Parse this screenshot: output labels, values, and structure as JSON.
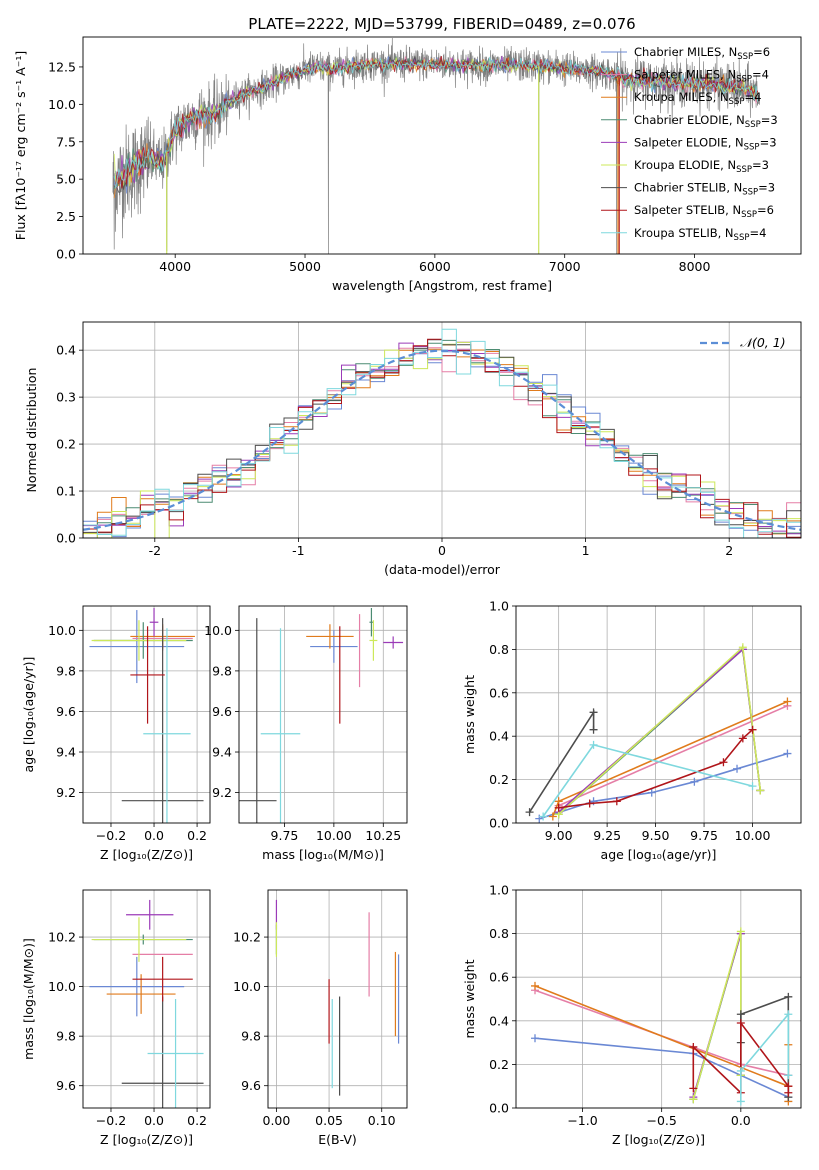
{
  "figure_title": "PLATE=2222, MJD=53799, FIBERID=0489, z=0.076",
  "colors": {
    "Chabrier MILES": "#6a88d4",
    "Salpeter MILES": "#e57ea6",
    "Kroupa MILES": "#e07b1c",
    "Chabrier ELODIE": "#4c8c72",
    "Salpeter ELODIE": "#9b3bb8",
    "Kroupa ELODIE": "#cde85a",
    "Chabrier STELIB": "#4d4d4d",
    "Salpeter STELIB": "#b0151a",
    "Kroupa STELIB": "#7fd8de",
    "data": "#808080"
  },
  "chart_data": [
    {
      "id": "spectrum",
      "type": "line",
      "xlabel": "wavelength [Angstrom, rest frame]",
      "ylabel": "Flux [fλ10⁻¹⁷ erg cm⁻² s⁻¹ A⁻¹]",
      "xlim": [
        3290,
        8820
      ],
      "ylim": [
        0,
        14.5
      ],
      "xticks": [
        4000,
        5000,
        6000,
        7000,
        8000
      ],
      "yticks": [
        0.0,
        2.5,
        5.0,
        7.5,
        10.0,
        12.5
      ],
      "grid": false,
      "legend_position": "right",
      "legend": [
        {
          "label": "Chabrier MILES, N",
          "sub": "SSP",
          "suffix": "=6",
          "color_key": "Chabrier MILES"
        },
        {
          "label": "Salpeter MILES, N",
          "sub": "SSP",
          "suffix": "=4",
          "color_key": "Salpeter MILES"
        },
        {
          "label": "Kroupa MILES, N",
          "sub": "SSP",
          "suffix": "=4",
          "color_key": "Kroupa MILES"
        },
        {
          "label": "Chabrier ELODIE, N",
          "sub": "SSP",
          "suffix": "=3",
          "color_key": "Chabrier ELODIE"
        },
        {
          "label": "Salpeter ELODIE, N",
          "sub": "SSP",
          "suffix": "=3",
          "color_key": "Salpeter ELODIE"
        },
        {
          "label": "Kroupa ELODIE, N",
          "sub": "SSP",
          "suffix": "=3",
          "color_key": "Kroupa ELODIE"
        },
        {
          "label": "Chabrier STELIB, N",
          "sub": "SSP",
          "suffix": "=3",
          "color_key": "Chabrier STELIB"
        },
        {
          "label": "Salpeter STELIB, N",
          "sub": "SSP",
          "suffix": "=6",
          "color_key": "Salpeter STELIB"
        },
        {
          "label": "Kroupa STELIB, N",
          "sub": "SSP",
          "suffix": "=4",
          "color_key": "Kroupa STELIB"
        }
      ],
      "continuum": [
        [
          3520,
          4.6
        ],
        [
          3600,
          5.3
        ],
        [
          3700,
          5.8
        ],
        [
          3800,
          6.4
        ],
        [
          3900,
          6.0
        ],
        [
          3950,
          7.2
        ],
        [
          4000,
          8.2
        ],
        [
          4100,
          8.9
        ],
        [
          4200,
          9.3
        ],
        [
          4300,
          9.3
        ],
        [
          4400,
          10.0
        ],
        [
          4500,
          10.6
        ],
        [
          4600,
          10.9
        ],
        [
          4700,
          11.2
        ],
        [
          4800,
          11.6
        ],
        [
          4900,
          12.0
        ],
        [
          5000,
          12.3
        ],
        [
          5100,
          12.5
        ],
        [
          5200,
          12.3
        ],
        [
          5300,
          12.5
        ],
        [
          5500,
          12.7
        ],
        [
          5700,
          12.7
        ],
        [
          5900,
          12.7
        ],
        [
          6100,
          12.7
        ],
        [
          6300,
          12.6
        ],
        [
          6500,
          12.6
        ],
        [
          6700,
          12.6
        ],
        [
          6900,
          12.5
        ],
        [
          7100,
          12.3
        ],
        [
          7300,
          12.2
        ],
        [
          7420,
          11.8
        ],
        [
          7600,
          11.6
        ],
        [
          7800,
          11.5
        ],
        [
          8000,
          11.4
        ],
        [
          8200,
          11.3
        ],
        [
          8400,
          11.0
        ],
        [
          8500,
          10.6
        ]
      ],
      "spikes": [
        [
          3530,
          0.3
        ],
        [
          3935,
          0.2
        ],
        [
          5180,
          0.0
        ],
        [
          6800,
          0.0
        ],
        [
          7400,
          0.0
        ]
      ]
    },
    {
      "id": "residuals",
      "type": "histogram",
      "xlabel": "(data-model)/error",
      "ylabel": "Normed distribution",
      "xlim": [
        -2.5,
        2.5
      ],
      "ylim": [
        0,
        0.46
      ],
      "xticks": [
        -2,
        -1,
        0,
        1,
        2
      ],
      "yticks": [
        0.0,
        0.1,
        0.2,
        0.3,
        0.4
      ],
      "grid": true,
      "legend_position": "top-right",
      "legend": [
        {
          "label": "𝒩(0, 1)",
          "color": "#5b8ed6"
        }
      ],
      "bin_width": 0.1,
      "reference_curve": "normal(0,1)"
    },
    {
      "id": "age_vs_Z",
      "type": "errorbar",
      "xlabel": "Z [log₁₀(Z/Z⊙)]",
      "ylabel": "age  [log₁₀(age/yr)]",
      "xlim": [
        -0.33,
        0.26
      ],
      "ylim": [
        9.05,
        10.12
      ],
      "xticks": [
        -0.2,
        0.0,
        0.2
      ],
      "xtick_labels": [
        "−0.2",
        "0.0",
        "0.2"
      ],
      "yticks": [
        9.2,
        9.4,
        9.6,
        9.8,
        10.0
      ],
      "grid": true,
      "points": [
        {
          "k": "Chabrier MILES",
          "x": -0.08,
          "xe": 0.22,
          "y": 9.92,
          "ye": 0.18
        },
        {
          "k": "Salpeter MILES",
          "x": 0.04,
          "xe": 0.14,
          "y": 9.96,
          "ye": 0.06
        },
        {
          "k": "Kroupa MILES",
          "x": 0.04,
          "xe": 0.15,
          "y": 9.97,
          "ye": 0.06
        },
        {
          "k": "Chabrier ELODIE",
          "x": -0.05,
          "xe": 0.23,
          "y": 9.95,
          "ye": 0.09
        },
        {
          "k": "Salpeter ELODIE",
          "x": 0.0,
          "xe": 0.02,
          "y": 10.04,
          "ye": 0.07
        },
        {
          "k": "Kroupa ELODIE",
          "x": -0.07,
          "xe": 0.22,
          "y": 9.95,
          "ye": 0.1
        },
        {
          "k": "Chabrier STELIB",
          "x": 0.04,
          "xe": 0.19,
          "y": 9.16,
          "ye": 0.9
        },
        {
          "k": "Salpeter STELIB",
          "x": -0.03,
          "xe": 0.08,
          "y": 9.78,
          "ye": 0.24
        },
        {
          "k": "Kroupa STELIB",
          "x": 0.06,
          "xe": 0.11,
          "y": 9.49,
          "ye": 0.52
        }
      ]
    },
    {
      "id": "age_vs_mass",
      "type": "errorbar",
      "xlabel": "mass [log₁₀(M/M⊙)]",
      "ylabel": "",
      "xlim": [
        9.52,
        10.37
      ],
      "ylim": [
        9.05,
        10.12
      ],
      "xticks": [
        9.75,
        10.0,
        10.25
      ],
      "xtick_labels": [
        "9.75",
        "10.00",
        "10.25"
      ],
      "yticks": [
        9.2,
        9.4,
        9.6,
        9.8,
        10.0
      ],
      "grid": true,
      "points": [
        {
          "k": "Chabrier MILES",
          "x": 10.0,
          "xe": 0.12,
          "y": 9.92,
          "ye": 0.08
        },
        {
          "k": "Salpeter MILES",
          "x": 10.13,
          "xe": 0.0,
          "y": 9.9,
          "ye": 0.18
        },
        {
          "k": "Kroupa MILES",
          "x": 9.98,
          "xe": 0.12,
          "y": 9.97,
          "ye": 0.06
        },
        {
          "k": "Chabrier ELODIE",
          "x": 10.19,
          "xe": 0.01,
          "y": 10.04,
          "ye": 0.07
        },
        {
          "k": "Salpeter ELODIE",
          "x": 10.3,
          "xe": 0.05,
          "y": 9.94,
          "ye": 0.03
        },
        {
          "k": "Kroupa ELODIE",
          "x": 10.2,
          "xe": 0.02,
          "y": 9.95,
          "ye": 0.1
        },
        {
          "k": "Chabrier STELIB",
          "x": 9.61,
          "xe": 0.1,
          "y": 9.16,
          "ye": 0.9
        },
        {
          "k": "Salpeter STELIB",
          "x": 10.03,
          "xe": 0.0,
          "y": 9.78,
          "ye": 0.24
        },
        {
          "k": "Kroupa STELIB",
          "x": 9.73,
          "xe": 0.1,
          "y": 9.49,
          "ye": 0.52
        }
      ]
    },
    {
      "id": "weights_vs_age",
      "type": "line",
      "xlabel": "age  [log₁₀(age/yr)]",
      "ylabel": "mass weight",
      "xlim": [
        8.78,
        10.25
      ],
      "ylim": [
        0.0,
        1.0
      ],
      "xticks": [
        9.0,
        9.25,
        9.5,
        9.75,
        10.0
      ],
      "xtick_labels": [
        "9.00",
        "9.25",
        "9.50",
        "9.75",
        "10.00"
      ],
      "yticks": [
        0.0,
        0.2,
        0.4,
        0.6,
        0.8,
        1.0
      ],
      "grid": true,
      "series": [
        {
          "k": "Chabrier MILES",
          "x": [
            8.9,
            9.18,
            9.48,
            9.7,
            9.92,
            10.18
          ],
          "y": [
            0.02,
            0.1,
            0.14,
            0.19,
            0.25,
            0.32
          ]
        },
        {
          "k": "Salpeter MILES",
          "x": [
            9.0,
            10.18
          ],
          "y": [
            0.08,
            0.54
          ]
        },
        {
          "k": "Kroupa MILES",
          "x": [
            8.97,
            9.0,
            10.18
          ],
          "y": [
            0.03,
            0.1,
            0.56
          ]
        },
        {
          "k": "Chabrier ELODIE",
          "x": [
            9.0,
            9.95,
            10.04
          ],
          "y": [
            0.04,
            0.8,
            0.15
          ]
        },
        {
          "k": "Salpeter ELODIE",
          "x": [
            9.0,
            9.95,
            10.04
          ],
          "y": [
            0.05,
            0.8,
            0.15
          ]
        },
        {
          "k": "Kroupa ELODIE",
          "x": [
            9.0,
            9.95,
            10.04
          ],
          "y": [
            0.04,
            0.81,
            0.15
          ]
        },
        {
          "k": "Chabrier STELIB",
          "x": [
            8.85,
            9.18,
            9.18
          ],
          "y": [
            0.05,
            0.51,
            0.43
          ]
        },
        {
          "k": "Salpeter STELIB",
          "x": [
            9.0,
            9.16,
            9.3,
            9.85,
            9.95,
            10.0
          ],
          "y": [
            0.07,
            0.09,
            0.1,
            0.28,
            0.39,
            0.43
          ]
        },
        {
          "k": "Kroupa STELIB",
          "x": [
            8.92,
            9.18,
            10.0
          ],
          "y": [
            0.03,
            0.36,
            0.17
          ]
        }
      ]
    },
    {
      "id": "mass_vs_Z",
      "type": "errorbar",
      "xlabel": "Z [log₁₀(Z/Z⊙)]",
      "ylabel": "mass [log₁₀(M/M⊙)]",
      "xlim": [
        -0.33,
        0.26
      ],
      "ylim": [
        9.51,
        10.39
      ],
      "xticks": [
        -0.2,
        0.0,
        0.2
      ],
      "xtick_labels": [
        "−0.2",
        "0.0",
        "0.2"
      ],
      "yticks": [
        9.6,
        9.8,
        10.0,
        10.2
      ],
      "grid": true,
      "points": [
        {
          "k": "Chabrier MILES",
          "x": -0.08,
          "xe": 0.22,
          "y": 10.0,
          "ye": 0.12
        },
        {
          "k": "Salpeter MILES",
          "x": 0.04,
          "xe": 0.14,
          "y": 10.13,
          "ye": 0.0
        },
        {
          "k": "Kroupa MILES",
          "x": -0.06,
          "xe": 0.16,
          "y": 9.97,
          "ye": 0.08
        },
        {
          "k": "Chabrier ELODIE",
          "x": -0.05,
          "xe": 0.23,
          "y": 10.19,
          "ye": 0.02
        },
        {
          "k": "Salpeter ELODIE",
          "x": -0.02,
          "xe": 0.11,
          "y": 10.29,
          "ye": 0.06
        },
        {
          "k": "Kroupa ELODIE",
          "x": -0.07,
          "xe": 0.22,
          "y": 10.19,
          "ye": 0.09
        },
        {
          "k": "Chabrier STELIB",
          "x": 0.04,
          "xe": 0.19,
          "y": 9.61,
          "ye": 0.35
        },
        {
          "k": "Salpeter STELIB",
          "x": 0.04,
          "xe": 0.14,
          "y": 10.03,
          "ye": 0.09
        },
        {
          "k": "Kroupa STELIB",
          "x": 0.1,
          "xe": 0.13,
          "y": 9.73,
          "ye": 0.22
        }
      ]
    },
    {
      "id": "mass_vs_ebv",
      "type": "errorbar",
      "xlabel": "E(B-V)",
      "ylabel": "",
      "xlim": [
        -0.008,
        0.124
      ],
      "ylim": [
        9.51,
        10.39
      ],
      "xticks": [
        0.0,
        0.05,
        0.1
      ],
      "xtick_labels": [
        "0.00",
        "0.05",
        "0.10"
      ],
      "yticks": [
        9.6,
        9.8,
        10.0,
        10.2
      ],
      "grid": true,
      "points": [
        {
          "k": "Chabrier MILES",
          "x": 0.116,
          "xe": 0.0,
          "y": 9.95,
          "ye": 0.18
        },
        {
          "k": "Salpeter MILES",
          "x": 0.088,
          "xe": 0.0,
          "y": 10.13,
          "ye": 0.17
        },
        {
          "k": "Kroupa MILES",
          "x": 0.113,
          "xe": 0.0,
          "y": 9.97,
          "ye": 0.17
        },
        {
          "k": "Chabrier ELODIE",
          "x": 0.0,
          "xe": 0.0,
          "y": 10.19,
          "ye": 0.06
        },
        {
          "k": "Salpeter ELODIE",
          "x": 0.0,
          "xe": 0.0,
          "y": 10.29,
          "ye": 0.06
        },
        {
          "k": "Kroupa ELODIE",
          "x": 0.0,
          "xe": 0.0,
          "y": 10.19,
          "ye": 0.07
        },
        {
          "k": "Chabrier STELIB",
          "x": 0.06,
          "xe": 0.0,
          "y": 9.76,
          "ye": 0.2
        },
        {
          "k": "Salpeter STELIB",
          "x": 0.05,
          "xe": 0.0,
          "y": 9.9,
          "ye": 0.13
        },
        {
          "k": "Kroupa STELIB",
          "x": 0.053,
          "xe": 0.0,
          "y": 9.77,
          "ye": 0.18
        }
      ]
    },
    {
      "id": "weights_vs_Z",
      "type": "line",
      "xlabel": "Z [log₁₀(Z/Z⊙)]",
      "ylabel": "mass weight",
      "xlim": [
        -1.42,
        0.38
      ],
      "ylim": [
        0.0,
        1.0
      ],
      "xticks": [
        -1.0,
        -0.5,
        0.0
      ],
      "xtick_labels": [
        "−1.0",
        "−0.5",
        "0.0"
      ],
      "yticks": [
        0.0,
        0.2,
        0.4,
        0.6,
        0.8,
        1.0
      ],
      "grid": true,
      "series": [
        {
          "k": "Chabrier MILES",
          "x": [
            -1.3,
            -0.3,
            0.3
          ],
          "y": [
            0.32,
            0.25,
            0.05
          ]
        },
        {
          "k": "Salpeter MILES",
          "x": [
            -1.3,
            0.0,
            0.3
          ],
          "y": [
            0.54,
            0.2,
            0.15
          ]
        },
        {
          "k": "Kroupa MILES",
          "x": [
            -1.3,
            0.3,
            0.3,
            0.3
          ],
          "y": [
            0.56,
            0.1,
            0.03,
            0.29
          ]
        },
        {
          "k": "Chabrier ELODIE",
          "x": [
            -0.3,
            0.0,
            0.0
          ],
          "y": [
            0.04,
            0.8,
            0.15
          ]
        },
        {
          "k": "Salpeter ELODIE",
          "x": [
            -0.3,
            0.0,
            0.0
          ],
          "y": [
            0.05,
            0.8,
            0.15
          ]
        },
        {
          "k": "Kroupa ELODIE",
          "x": [
            -0.3,
            0.0,
            0.0
          ],
          "y": [
            0.04,
            0.81,
            0.15
          ]
        },
        {
          "k": "Chabrier STELIB",
          "x": [
            0.3,
            0.3,
            0.0,
            0.0
          ],
          "y": [
            0.05,
            0.51,
            0.43,
            0.3
          ]
        },
        {
          "k": "Salpeter STELIB",
          "x": [
            -0.3,
            -0.3,
            0.0,
            0.0,
            0.3,
            0.3
          ],
          "y": [
            0.09,
            0.28,
            0.07,
            0.39,
            0.1,
            0.07
          ]
        },
        {
          "k": "Kroupa STELIB",
          "x": [
            0.0,
            0.0,
            0.3,
            0.3
          ],
          "y": [
            0.03,
            0.17,
            0.43,
            0.15
          ]
        }
      ]
    }
  ]
}
